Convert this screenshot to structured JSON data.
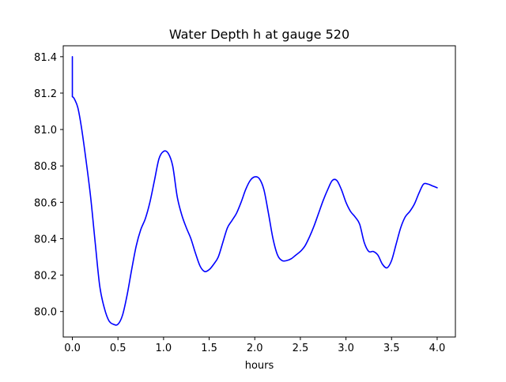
{
  "chart_data": {
    "type": "line",
    "title": "Water Depth h at gauge 520",
    "xlabel": "hours",
    "ylabel": "",
    "xlim": [
      -0.1,
      4.2
    ],
    "ylim": [
      79.86,
      81.46
    ],
    "xticks": [
      0.0,
      0.5,
      1.0,
      1.5,
      2.0,
      2.5,
      3.0,
      3.5,
      4.0
    ],
    "xtick_labels": [
      "0.0",
      "0.5",
      "1.0",
      "1.5",
      "2.0",
      "2.5",
      "3.0",
      "3.5",
      "4.0"
    ],
    "yticks": [
      80.0,
      80.2,
      80.4,
      80.6,
      80.8,
      81.0,
      81.2,
      81.4
    ],
    "ytick_labels": [
      "80.0",
      "80.2",
      "80.4",
      "80.6",
      "80.8",
      "81.0",
      "81.2",
      "81.4"
    ],
    "grid": false,
    "series": [
      {
        "color": "#0000ff",
        "x": [
          0.0,
          0.0,
          0.02,
          0.06,
          0.1,
          0.15,
          0.2,
          0.25,
          0.3,
          0.35,
          0.4,
          0.45,
          0.5,
          0.55,
          0.6,
          0.65,
          0.7,
          0.75,
          0.8,
          0.85,
          0.9,
          0.95,
          1.0,
          1.05,
          1.1,
          1.15,
          1.2,
          1.25,
          1.3,
          1.35,
          1.4,
          1.45,
          1.5,
          1.55,
          1.6,
          1.65,
          1.7,
          1.75,
          1.8,
          1.85,
          1.9,
          1.95,
          2.0,
          2.05,
          2.1,
          2.15,
          2.2,
          2.25,
          2.3,
          2.35,
          2.4,
          2.45,
          2.5,
          2.55,
          2.6,
          2.65,
          2.7,
          2.75,
          2.8,
          2.85,
          2.9,
          2.95,
          3.0,
          3.05,
          3.1,
          3.15,
          3.2,
          3.25,
          3.3,
          3.35,
          3.4,
          3.45,
          3.5,
          3.55,
          3.6,
          3.65,
          3.7,
          3.75,
          3.8,
          3.85,
          3.9,
          3.95,
          4.0
        ],
        "y": [
          81.4,
          81.18,
          81.17,
          81.12,
          81.01,
          80.83,
          80.63,
          80.38,
          80.14,
          80.02,
          79.95,
          79.93,
          79.93,
          79.98,
          80.09,
          80.23,
          80.36,
          80.45,
          80.51,
          80.6,
          80.72,
          80.84,
          80.88,
          80.87,
          80.8,
          80.63,
          80.53,
          80.46,
          80.4,
          80.32,
          80.25,
          80.22,
          80.23,
          80.26,
          80.3,
          80.38,
          80.46,
          80.5,
          80.54,
          80.6,
          80.67,
          80.72,
          80.74,
          80.73,
          80.67,
          80.54,
          80.4,
          80.31,
          80.28,
          80.28,
          80.29,
          80.31,
          80.33,
          80.36,
          80.41,
          80.47,
          80.54,
          80.61,
          80.67,
          80.72,
          80.72,
          80.67,
          80.6,
          80.55,
          80.52,
          80.48,
          80.38,
          80.33,
          80.33,
          80.31,
          80.26,
          80.24,
          80.28,
          80.37,
          80.46,
          80.52,
          80.55,
          80.59,
          80.65,
          80.7,
          80.7,
          80.69,
          80.68
        ]
      }
    ]
  }
}
